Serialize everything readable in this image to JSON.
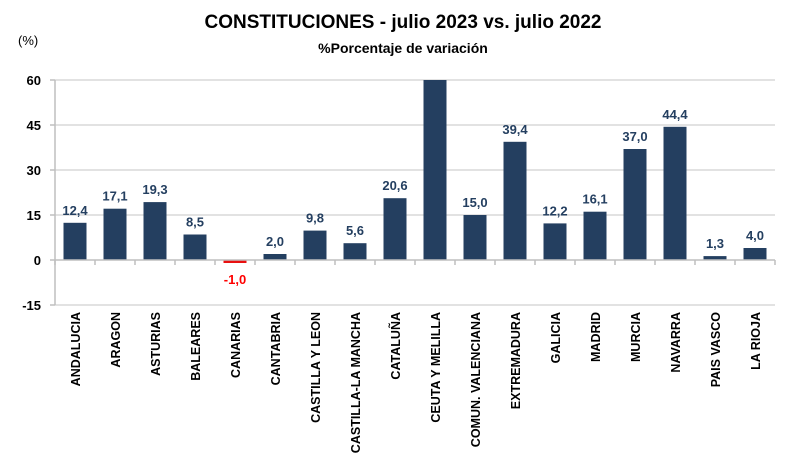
{
  "chart_data": {
    "type": "bar",
    "title": "CONSTITUCIONES  - julio 2023 vs. julio 2022",
    "subtitle": "%Porcentaje de variación",
    "ylabel": "(%)",
    "xlabel": "",
    "ylim": [
      -15,
      60
    ],
    "yticks": [
      "60",
      "45",
      "30",
      "15",
      "0",
      "-15"
    ],
    "ytick_values": [
      60,
      45,
      30,
      15,
      0,
      -15
    ],
    "grid": true,
    "legend": "none",
    "categories": [
      "ANDALUCIA",
      "ARAGON",
      "ASTURIAS",
      "BALEARES",
      "CANARIAS",
      "CANTABRIA",
      "CASTILLA Y LEON",
      "CASTILLA-LA MANCHA",
      "CATALUÑA",
      "CEUTA Y MELILLA",
      "COMUN. VALENCIANA",
      "EXTREMADURA",
      "GALICIA",
      "MADRID",
      "MURCIA",
      "NAVARRA",
      "PAIS VASCO",
      "LA RIOJA"
    ],
    "values": [
      12.4,
      17.1,
      19.3,
      8.5,
      -1.0,
      2.0,
      9.8,
      5.6,
      20.6,
      60,
      15.0,
      39.4,
      12.2,
      16.1,
      37.0,
      44.4,
      1.3,
      4.0
    ],
    "labels": [
      "12,4",
      "17,1",
      "19,3",
      "8,5",
      "-1,0",
      "2,0",
      "9,8",
      "5,6",
      "20,6",
      "",
      "15,0",
      "39,4",
      "12,2",
      "16,1",
      "37,0",
      "44,4",
      "1,3",
      "4,0"
    ],
    "colors": {
      "positive": "#243f60",
      "negative": "#e81010",
      "positive_label": "#243f60",
      "negative_label": "#ff0000",
      "grid": "#d9d9d9"
    }
  }
}
